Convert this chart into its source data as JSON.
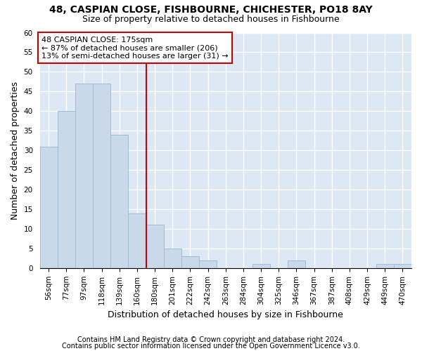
{
  "title_line1": "48, CASPIAN CLOSE, FISHBOURNE, CHICHESTER, PO18 8AY",
  "title_line2": "Size of property relative to detached houses in Fishbourne",
  "xlabel": "Distribution of detached houses by size in Fishbourne",
  "ylabel": "Number of detached properties",
  "footnote1": "Contains HM Land Registry data © Crown copyright and database right 2024.",
  "footnote2": "Contains public sector information licensed under the Open Government Licence v3.0.",
  "categories": [
    "56sqm",
    "77sqm",
    "97sqm",
    "118sqm",
    "139sqm",
    "160sqm",
    "180sqm",
    "201sqm",
    "222sqm",
    "242sqm",
    "263sqm",
    "284sqm",
    "304sqm",
    "325sqm",
    "346sqm",
    "367sqm",
    "387sqm",
    "408sqm",
    "429sqm",
    "449sqm",
    "470sqm"
  ],
  "values": [
    31,
    40,
    47,
    47,
    34,
    14,
    11,
    5,
    3,
    2,
    0,
    0,
    1,
    0,
    2,
    0,
    0,
    0,
    0,
    1,
    1
  ],
  "bar_color": "#c9d9ea",
  "bar_edge_color": "#a0bcd5",
  "ylim": [
    0,
    60
  ],
  "yticks": [
    0,
    5,
    10,
    15,
    20,
    25,
    30,
    35,
    40,
    45,
    50,
    55,
    60
  ],
  "property_label": "48 CASPIAN CLOSE: 175sqm",
  "annotation_line1": "← 87% of detached houses are smaller (206)",
  "annotation_line2": "13% of semi-detached houses are larger (31) →",
  "annotation_box_color": "#ffffff",
  "annotation_box_edge": "#cc0000",
  "vline_color": "#cc0000",
  "bg_color": "#ffffff",
  "plot_bg_color": "#dce9f5",
  "grid_color": "#ffffff",
  "title_fontsize": 10,
  "subtitle_fontsize": 9,
  "axis_label_fontsize": 9,
  "tick_fontsize": 7.5,
  "annotation_fontsize": 8,
  "footnote_fontsize": 7
}
